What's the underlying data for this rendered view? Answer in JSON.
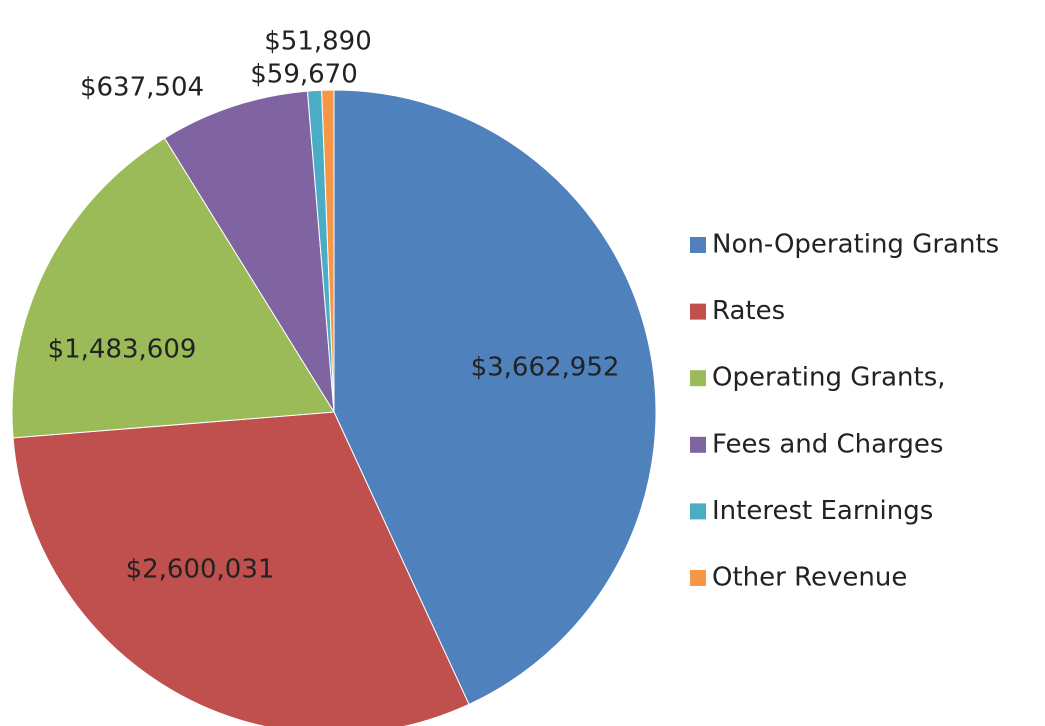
{
  "chart_data": {
    "type": "pie",
    "categories": [
      "Non-Operating Grants",
      "Rates",
      "Operating Grants,",
      "Fees and Charges",
      "Interest Earnings",
      "Other Revenue"
    ],
    "values": [
      3662952,
      2600031,
      1483609,
      637504,
      59670,
      51890
    ],
    "value_labels": [
      "$3,662,952",
      "$2,600,031",
      "$1,483,609",
      "$637,504",
      "$59,670",
      "$51,890"
    ],
    "colors": [
      "#4f81bd",
      "#c0504d",
      "#9bbb59",
      "#8064a2",
      "#4bacc6",
      "#f79646"
    ],
    "legend": "right"
  }
}
